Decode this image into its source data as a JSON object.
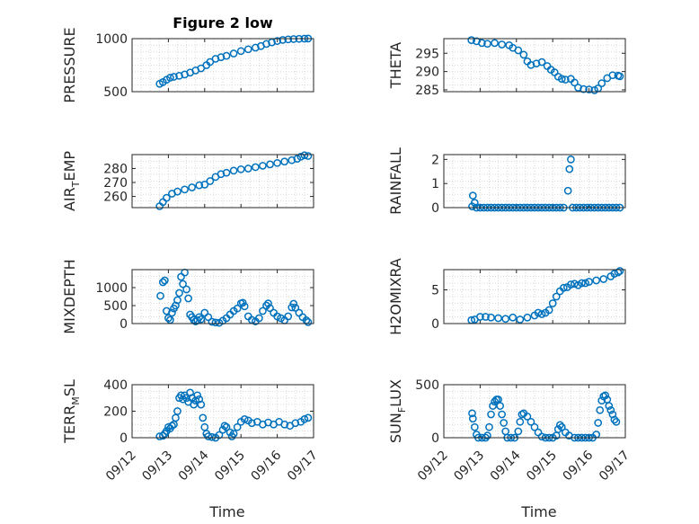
{
  "chart_data": [
    {
      "type": "scatter",
      "title": "Figure 2 low",
      "ylabel": "PRESSURE",
      "xlabel": "",
      "ylim": [
        500,
        1000
      ],
      "yticks": [
        500,
        1000
      ],
      "xlim": [
        0,
        5
      ],
      "points": [
        [
          0.76,
          574
        ],
        [
          0.85,
          590
        ],
        [
          0.95,
          612
        ],
        [
          1.05,
          632
        ],
        [
          1.15,
          640
        ],
        [
          1.3,
          650
        ],
        [
          1.45,
          662
        ],
        [
          1.6,
          680
        ],
        [
          1.75,
          700
        ],
        [
          1.9,
          720
        ],
        [
          2.05,
          750
        ],
        [
          2.15,
          780
        ],
        [
          2.3,
          810
        ],
        [
          2.45,
          825
        ],
        [
          2.6,
          838
        ],
        [
          2.8,
          860
        ],
        [
          3.0,
          883
        ],
        [
          3.2,
          900
        ],
        [
          3.4,
          915
        ],
        [
          3.55,
          930
        ],
        [
          3.7,
          950
        ],
        [
          3.85,
          965
        ],
        [
          4.0,
          978
        ],
        [
          4.15,
          988
        ],
        [
          4.3,
          993
        ],
        [
          4.45,
          996
        ],
        [
          4.6,
          998
        ],
        [
          4.75,
          1000
        ],
        [
          4.85,
          1001
        ]
      ]
    },
    {
      "type": "scatter",
      "title": "",
      "ylabel": "THETA",
      "xlabel": "",
      "ylim": [
        284.5,
        299
      ],
      "yticks": [
        285,
        290,
        295
      ],
      "xlim": [
        0,
        5
      ],
      "points": [
        [
          0.76,
          298.6
        ],
        [
          0.9,
          298.3
        ],
        [
          1.05,
          297.8
        ],
        [
          1.2,
          297.6
        ],
        [
          1.4,
          297.8
        ],
        [
          1.6,
          297.4
        ],
        [
          1.8,
          297.2
        ],
        [
          1.9,
          296.5
        ],
        [
          2.05,
          295.8
        ],
        [
          2.2,
          294.6
        ],
        [
          2.3,
          292.8
        ],
        [
          2.4,
          291.8
        ],
        [
          2.55,
          292.2
        ],
        [
          2.7,
          292.6
        ],
        [
          2.85,
          291.5
        ],
        [
          2.95,
          290.5
        ],
        [
          3.05,
          289.8
        ],
        [
          3.15,
          288.6
        ],
        [
          3.25,
          288.0
        ],
        [
          3.35,
          287.8
        ],
        [
          3.5,
          288.0
        ],
        [
          3.6,
          287.0
        ],
        [
          3.7,
          285.6
        ],
        [
          3.85,
          285.2
        ],
        [
          4.0,
          285.1
        ],
        [
          4.15,
          284.9
        ],
        [
          4.25,
          285.4
        ],
        [
          4.35,
          286.8
        ],
        [
          4.5,
          288.2
        ],
        [
          4.65,
          289.0
        ],
        [
          4.8,
          288.9
        ],
        [
          4.85,
          288.7
        ]
      ]
    },
    {
      "type": "scatter",
      "title": "",
      "ylabel": "AIR_TEMP",
      "xlabel": "",
      "ylim": [
        252,
        290
      ],
      "yticks": [
        260,
        270,
        280
      ],
      "xlim": [
        0,
        5
      ],
      "points": [
        [
          0.76,
          253
        ],
        [
          0.85,
          256
        ],
        [
          0.95,
          259
        ],
        [
          1.1,
          262
        ],
        [
          1.25,
          263.5
        ],
        [
          1.45,
          265
        ],
        [
          1.65,
          266.5
        ],
        [
          1.85,
          268
        ],
        [
          2.0,
          268.5
        ],
        [
          2.15,
          271
        ],
        [
          2.3,
          274
        ],
        [
          2.45,
          276
        ],
        [
          2.6,
          277
        ],
        [
          2.8,
          278.5
        ],
        [
          3.0,
          279.5
        ],
        [
          3.2,
          280
        ],
        [
          3.4,
          281
        ],
        [
          3.6,
          282
        ],
        [
          3.8,
          283
        ],
        [
          4.0,
          284
        ],
        [
          4.2,
          285
        ],
        [
          4.4,
          286
        ],
        [
          4.55,
          287
        ],
        [
          4.65,
          288.5
        ],
        [
          4.75,
          289.5
        ],
        [
          4.85,
          289
        ]
      ]
    },
    {
      "type": "scatter",
      "title": "",
      "ylabel": "RAINFALL",
      "xlabel": "",
      "ylim": [
        0,
        2.2
      ],
      "yticks": [
        0,
        1,
        2
      ],
      "xlim": [
        0,
        5
      ],
      "points": [
        [
          0.78,
          0.05
        ],
        [
          0.8,
          0.5
        ],
        [
          0.85,
          0.2
        ],
        [
          0.9,
          0
        ],
        [
          1.0,
          0
        ],
        [
          1.1,
          0
        ],
        [
          1.2,
          0
        ],
        [
          1.3,
          0
        ],
        [
          1.4,
          0
        ],
        [
          1.5,
          0
        ],
        [
          1.6,
          0
        ],
        [
          1.7,
          0
        ],
        [
          1.8,
          0
        ],
        [
          1.9,
          0
        ],
        [
          2.0,
          0
        ],
        [
          2.1,
          0
        ],
        [
          2.2,
          0
        ],
        [
          2.3,
          0
        ],
        [
          2.4,
          0
        ],
        [
          2.5,
          0
        ],
        [
          2.6,
          0
        ],
        [
          2.7,
          0
        ],
        [
          2.8,
          0
        ],
        [
          2.9,
          0
        ],
        [
          3.0,
          0
        ],
        [
          3.1,
          0
        ],
        [
          3.2,
          0
        ],
        [
          3.3,
          0
        ],
        [
          3.42,
          0.7
        ],
        [
          3.46,
          1.6
        ],
        [
          3.5,
          2.0
        ],
        [
          3.55,
          0
        ],
        [
          3.65,
          0
        ],
        [
          3.75,
          0
        ],
        [
          3.85,
          0
        ],
        [
          3.95,
          0
        ],
        [
          4.05,
          0
        ],
        [
          4.15,
          0
        ],
        [
          4.25,
          0
        ],
        [
          4.35,
          0
        ],
        [
          4.45,
          0
        ],
        [
          4.55,
          0
        ],
        [
          4.65,
          0
        ],
        [
          4.75,
          0
        ],
        [
          4.85,
          0
        ]
      ]
    },
    {
      "type": "scatter",
      "title": "",
      "ylabel": "MIXDEPTH",
      "xlabel": "",
      "ylim": [
        0,
        1500
      ],
      "yticks": [
        0,
        500,
        1000
      ],
      "xlim": [
        0,
        5
      ],
      "points": [
        [
          0.78,
          770
        ],
        [
          0.85,
          1150
        ],
        [
          0.9,
          1200
        ],
        [
          0.95,
          350
        ],
        [
          1.0,
          150
        ],
        [
          1.05,
          100
        ],
        [
          1.1,
          300
        ],
        [
          1.15,
          420
        ],
        [
          1.2,
          500
        ],
        [
          1.25,
          650
        ],
        [
          1.3,
          850
        ],
        [
          1.35,
          1300
        ],
        [
          1.4,
          1100
        ],
        [
          1.45,
          1420
        ],
        [
          1.5,
          950
        ],
        [
          1.55,
          700
        ],
        [
          1.6,
          250
        ],
        [
          1.65,
          180
        ],
        [
          1.7,
          100
        ],
        [
          1.75,
          60
        ],
        [
          1.8,
          90
        ],
        [
          1.85,
          180
        ],
        [
          1.9,
          120
        ],
        [
          2.0,
          300
        ],
        [
          2.1,
          180
        ],
        [
          2.2,
          50
        ],
        [
          2.3,
          30
        ],
        [
          2.4,
          20
        ],
        [
          2.5,
          80
        ],
        [
          2.6,
          150
        ],
        [
          2.7,
          250
        ],
        [
          2.8,
          350
        ],
        [
          2.9,
          420
        ],
        [
          3.0,
          560
        ],
        [
          3.05,
          580
        ],
        [
          3.1,
          480
        ],
        [
          3.2,
          200
        ],
        [
          3.3,
          100
        ],
        [
          3.4,
          60
        ],
        [
          3.5,
          150
        ],
        [
          3.6,
          350
        ],
        [
          3.7,
          500
        ],
        [
          3.75,
          560
        ],
        [
          3.8,
          430
        ],
        [
          3.9,
          300
        ],
        [
          4.0,
          200
        ],
        [
          4.1,
          150
        ],
        [
          4.2,
          90
        ],
        [
          4.3,
          200
        ],
        [
          4.4,
          450
        ],
        [
          4.45,
          550
        ],
        [
          4.5,
          440
        ],
        [
          4.6,
          300
        ],
        [
          4.7,
          180
        ],
        [
          4.8,
          90
        ],
        [
          4.85,
          40
        ]
      ]
    },
    {
      "type": "scatter",
      "title": "",
      "ylabel": "H2OMIXRA",
      "xlabel": "",
      "ylim": [
        0,
        8
      ],
      "yticks": [
        0,
        5
      ],
      "xlim": [
        0,
        5
      ],
      "points": [
        [
          0.76,
          0.5
        ],
        [
          0.85,
          0.6
        ],
        [
          1.0,
          1.0
        ],
        [
          1.15,
          1.0
        ],
        [
          1.3,
          0.9
        ],
        [
          1.5,
          0.8
        ],
        [
          1.7,
          0.7
        ],
        [
          1.9,
          0.9
        ],
        [
          2.1,
          0.6
        ],
        [
          2.3,
          0.9
        ],
        [
          2.5,
          1.2
        ],
        [
          2.6,
          1.6
        ],
        [
          2.7,
          1.4
        ],
        [
          2.8,
          1.6
        ],
        [
          2.9,
          2.0
        ],
        [
          3.0,
          3.0
        ],
        [
          3.1,
          4.0
        ],
        [
          3.2,
          4.8
        ],
        [
          3.3,
          5.3
        ],
        [
          3.4,
          5.4
        ],
        [
          3.5,
          5.8
        ],
        [
          3.6,
          5.9
        ],
        [
          3.7,
          5.7
        ],
        [
          3.8,
          6.0
        ],
        [
          3.9,
          6.0
        ],
        [
          4.0,
          6.2
        ],
        [
          4.2,
          6.4
        ],
        [
          4.4,
          6.6
        ],
        [
          4.6,
          7.0
        ],
        [
          4.7,
          7.4
        ],
        [
          4.8,
          7.6
        ],
        [
          4.85,
          7.8
        ]
      ]
    },
    {
      "type": "scatter",
      "title": "",
      "ylabel": "TERR_MSL",
      "xlabel": "Time",
      "ylim": [
        0,
        400
      ],
      "yticks": [
        0,
        200,
        400
      ],
      "xlim": [
        0,
        5
      ],
      "xticks": [
        "09/12",
        "09/13",
        "09/14",
        "09/15",
        "09/16",
        "09/17"
      ],
      "points": [
        [
          0.76,
          10
        ],
        [
          0.85,
          15
        ],
        [
          0.9,
          30
        ],
        [
          0.95,
          50
        ],
        [
          1.0,
          80
        ],
        [
          1.05,
          70
        ],
        [
          1.1,
          90
        ],
        [
          1.15,
          100
        ],
        [
          1.2,
          150
        ],
        [
          1.25,
          200
        ],
        [
          1.3,
          300
        ],
        [
          1.35,
          320
        ],
        [
          1.4,
          290
        ],
        [
          1.45,
          320
        ],
        [
          1.5,
          300
        ],
        [
          1.55,
          270
        ],
        [
          1.6,
          340
        ],
        [
          1.65,
          300
        ],
        [
          1.7,
          250
        ],
        [
          1.75,
          280
        ],
        [
          1.8,
          320
        ],
        [
          1.85,
          290
        ],
        [
          1.9,
          250
        ],
        [
          1.95,
          150
        ],
        [
          2.0,
          80
        ],
        [
          2.05,
          30
        ],
        [
          2.1,
          10
        ],
        [
          2.2,
          5
        ],
        [
          2.3,
          0
        ],
        [
          2.4,
          20
        ],
        [
          2.5,
          60
        ],
        [
          2.55,
          90
        ],
        [
          2.6,
          80
        ],
        [
          2.7,
          40
        ],
        [
          2.75,
          10
        ],
        [
          2.8,
          30
        ],
        [
          2.9,
          80
        ],
        [
          3.0,
          120
        ],
        [
          3.1,
          140
        ],
        [
          3.2,
          130
        ],
        [
          3.3,
          110
        ],
        [
          3.45,
          120
        ],
        [
          3.6,
          100
        ],
        [
          3.75,
          115
        ],
        [
          3.9,
          100
        ],
        [
          4.05,
          120
        ],
        [
          4.2,
          100
        ],
        [
          4.35,
          90
        ],
        [
          4.5,
          110
        ],
        [
          4.65,
          120
        ],
        [
          4.75,
          140
        ],
        [
          4.85,
          150
        ]
      ]
    },
    {
      "type": "scatter",
      "title": "",
      "ylabel": "SUN_FLUX",
      "xlabel": "Time",
      "ylim": [
        0,
        500
      ],
      "yticks": [
        0,
        500
      ],
      "xlim": [
        0,
        5
      ],
      "xticks": [
        "09/12",
        "09/13",
        "09/14",
        "09/15",
        "09/16",
        "09/17"
      ],
      "points": [
        [
          0.78,
          230
        ],
        [
          0.8,
          180
        ],
        [
          0.85,
          100
        ],
        [
          0.9,
          30
        ],
        [
          0.95,
          0
        ],
        [
          1.05,
          0
        ],
        [
          1.15,
          0
        ],
        [
          1.2,
          20
        ],
        [
          1.25,
          100
        ],
        [
          1.3,
          220
        ],
        [
          1.35,
          300
        ],
        [
          1.4,
          340
        ],
        [
          1.45,
          360
        ],
        [
          1.5,
          360
        ],
        [
          1.55,
          300
        ],
        [
          1.6,
          220
        ],
        [
          1.65,
          140
        ],
        [
          1.7,
          60
        ],
        [
          1.75,
          0
        ],
        [
          1.85,
          0
        ],
        [
          1.95,
          0
        ],
        [
          2.05,
          60
        ],
        [
          2.1,
          150
        ],
        [
          2.15,
          220
        ],
        [
          2.2,
          230
        ],
        [
          2.3,
          200
        ],
        [
          2.4,
          150
        ],
        [
          2.5,
          100
        ],
        [
          2.6,
          50
        ],
        [
          2.7,
          10
        ],
        [
          2.8,
          0
        ],
        [
          2.9,
          0
        ],
        [
          3.0,
          0
        ],
        [
          3.1,
          20
        ],
        [
          3.15,
          80
        ],
        [
          3.2,
          120
        ],
        [
          3.25,
          100
        ],
        [
          3.35,
          50
        ],
        [
          3.45,
          20
        ],
        [
          3.6,
          0
        ],
        [
          3.7,
          0
        ],
        [
          3.8,
          0
        ],
        [
          3.9,
          0
        ],
        [
          4.0,
          0
        ],
        [
          4.1,
          0
        ],
        [
          4.2,
          30
        ],
        [
          4.25,
          140
        ],
        [
          4.3,
          260
        ],
        [
          4.35,
          350
        ],
        [
          4.4,
          390
        ],
        [
          4.45,
          400
        ],
        [
          4.5,
          360
        ],
        [
          4.55,
          300
        ],
        [
          4.6,
          260
        ],
        [
          4.65,
          220
        ],
        [
          4.7,
          170
        ],
        [
          4.75,
          150
        ]
      ]
    }
  ],
  "ylabels": [
    {
      "main": "PRESSURE",
      "pre": "",
      "sub": "",
      "post": ""
    },
    {
      "main": "THETA",
      "pre": "",
      "sub": "",
      "post": ""
    },
    {
      "main": "",
      "pre": "AIR",
      "sub": "T",
      "post": "EMP"
    },
    {
      "main": "RAINFALL",
      "pre": "",
      "sub": "",
      "post": ""
    },
    {
      "main": "MIXDEPTH",
      "pre": "",
      "sub": "",
      "post": ""
    },
    {
      "main": "H2OMIXRA",
      "pre": "",
      "sub": "",
      "post": ""
    },
    {
      "main": "",
      "pre": "TERR",
      "sub": "M",
      "post": "SL"
    },
    {
      "main": "",
      "pre": "SUN",
      "sub": "F",
      "post": "LUX"
    }
  ],
  "colors": {
    "marker": "#0072BD",
    "axis": "#262626",
    "grid": "#d9d9d9"
  }
}
